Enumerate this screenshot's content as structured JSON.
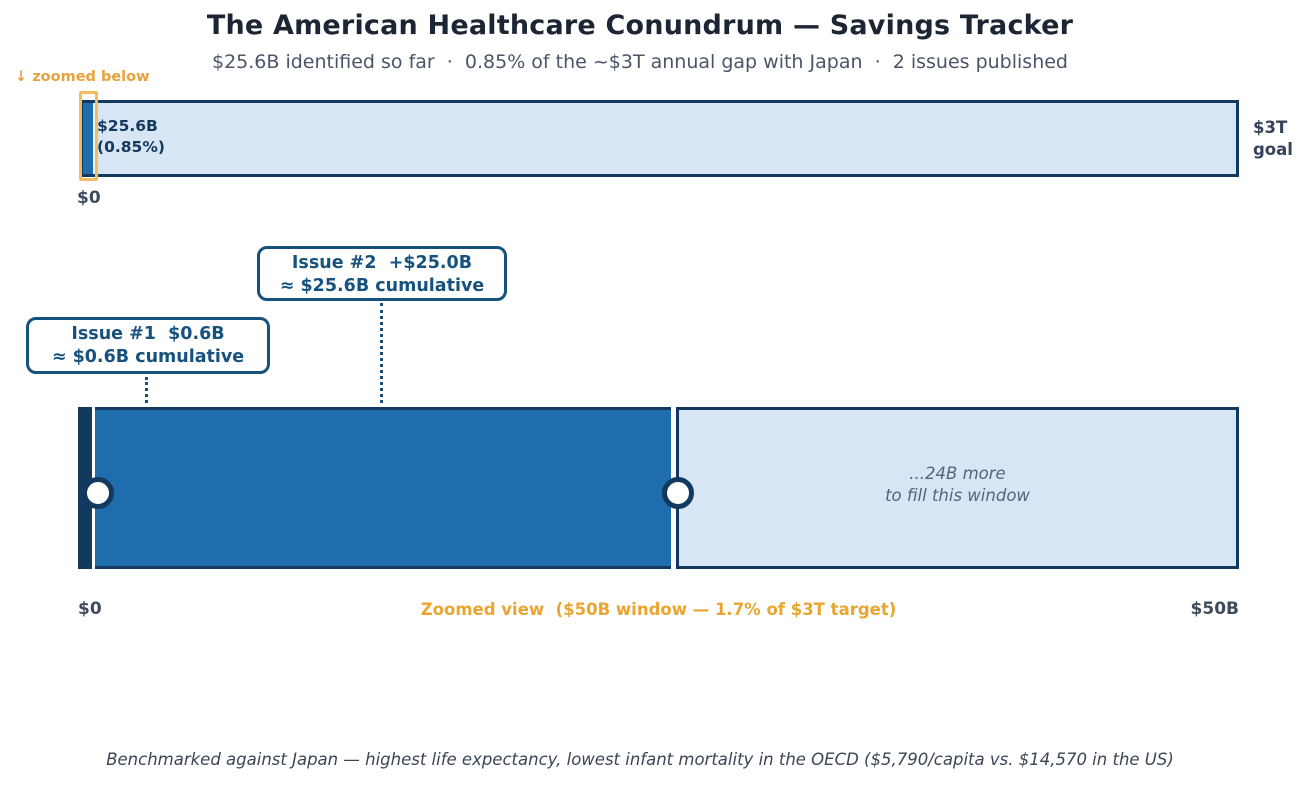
{
  "header": {
    "title": "The American Healthcare Conundrum — Savings Tracker",
    "subtitle": "$25.6B identified so far  ·  0.85% of the ~$3T annual gap with Japan  ·  2 issues published"
  },
  "overview_bar": {
    "zoom_hint_arrow": "↓",
    "zoom_hint_text": "zoomed below",
    "progress_line1": "$25.6B",
    "progress_line2": "(0.85%)",
    "left_tick": "$0",
    "goal_line1": "$3T",
    "goal_line2": "goal"
  },
  "annotations": [
    {
      "line1": "Issue #1  $0.6B",
      "line2": "≈ $0.6B cumulative"
    },
    {
      "line1": "Issue #2  +$25.0B",
      "line2": "≈ $25.6B cumulative"
    }
  ],
  "zoom_bar": {
    "remaining_line1": "...24B more",
    "remaining_line2": "to fill this window",
    "left_tick": "$0",
    "center_label": "Zoomed view  ($50B window — 1.7% of $3T target)",
    "right_tick": "$50B"
  },
  "footer": "Benchmarked against Japan — highest life expectancy, lowest infant mortality in the OECD ($5,790/capita vs. $14,570 in the US)",
  "colors": {
    "navy": "#133a5e",
    "bar_blue": "#1f6dad",
    "bar_light_blue": "#d7e5f4",
    "callout_navy": "#17517e",
    "orange_accent": "#e8a23b",
    "orange_window_box": "#f1bc63",
    "title_text": "#1b2533",
    "subtitle_text": "#4a5568",
    "muted_italic_text": "#55657a",
    "tick_text": "#3e4b5d"
  },
  "chart_data": {
    "type": "bar",
    "title": "The American Healthcare Conundrum — Savings Tracker",
    "subtitle_stats": {
      "identified_usd_billions": 25.6,
      "pct_of_annual_gap": 0.85,
      "annual_gap_target": "~$3T",
      "issues_published": 2
    },
    "overview_bar": {
      "range_labels": [
        "$0",
        "$3T goal"
      ],
      "filled_usd_billions": 25.6,
      "filled_pct_of_goal": 0.85
    },
    "zoomed_bar": {
      "window_usd_billions": 50,
      "window_pct_of_target": 1.7,
      "range_labels": [
        "$0",
        "$50B"
      ],
      "segments": [
        {
          "name": "Issue #1",
          "added_usd_billions": 0.6,
          "cumulative_usd_billions": 0.6
        },
        {
          "name": "Issue #2",
          "added_usd_billions": 25.0,
          "cumulative_usd_billions": 25.6
        }
      ],
      "remaining_usd_billions": 24,
      "legend_position": "none",
      "grid": false
    },
    "benchmark_note": "Benchmarked against Japan — highest life expectancy, lowest infant mortality in the OECD ($5,790/capita vs. $14,570 in the US)"
  }
}
